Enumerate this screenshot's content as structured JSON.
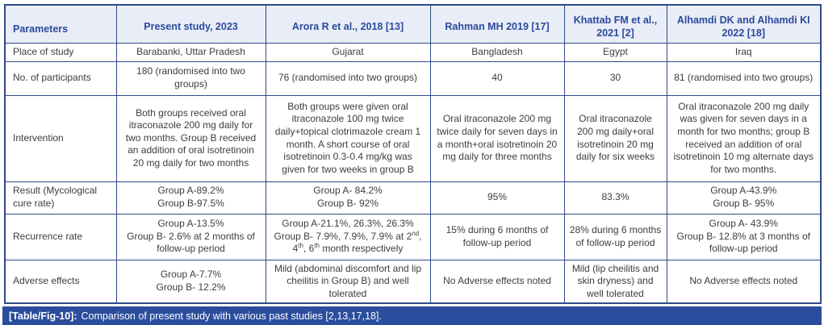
{
  "table": {
    "columns": [
      "Parameters",
      "Present study, 2023",
      "Arora R et al., 2018 [13]",
      "Rahman MH 2019 [17]",
      "Khattab FM et al., 2021 [2]",
      "Alhamdi DK and Alhamdi KI 2022 [18]"
    ],
    "rows": [
      {
        "label": "Place of study",
        "cells": [
          "Barabanki, Uttar Pradesh",
          "Gujarat",
          "Bangladesh",
          "Egypt",
          "Iraq"
        ]
      },
      {
        "label": "No. of participants",
        "cells": [
          "180 (randomised into two groups)",
          "76 (randomised into two groups)",
          "40",
          "30",
          "81 (randomised into two groups)"
        ]
      },
      {
        "label": "Intervention",
        "cells": [
          "Both groups received oral itraconazole 200 mg daily for two months. Group B received an addition of oral isotretinoin 20 mg daily for two months",
          "Both groups were given oral itraconazole 100 mg twice daily+topical clotrimazole cream 1 month. A short course of oral isotretinoin 0.3-0.4 mg/kg was given for two weeks in group B",
          "Oral itraconazole 200 mg twice daily for seven days in a month+oral isotretinoin 20 mg daily for three months",
          "Oral itraconazole 200 mg daily+oral isotretinoin 20 mg daily for six weeks",
          "Oral itraconazole 200 mg daily was given for seven days in a month for two months; group B received an addition of oral isotretinoin 10 mg alternate days for two months."
        ]
      },
      {
        "label": "Result (Mycological cure rate)",
        "cells": [
          "Group A-89.2%\nGroup B-97.5%",
          "Group A- 84.2%\nGroup B- 92%",
          "95%",
          "83.3%",
          "Group A-43.9%\nGroup B- 95%"
        ]
      },
      {
        "label": "Recurrence rate",
        "cells": [
          "Group A-13.5%\nGroup B- 2.6% at 2 months of follow-up period",
          "Group A-21.1%, 26.3%, 26.3%\nGroup B- 7.9%, 7.9%, 7.9% at 2^{nd}, 4^{th}, 6^{th} month respectively",
          "15% during 6 months of follow-up period",
          "28% during 6 months of follow-up period",
          "Group A- 43.9%\nGroup B- 12.8% at 3 months of follow-up period"
        ]
      },
      {
        "label": "Adverse effects",
        "cells": [
          "Group A-7.7%\nGroup B- 12.2%",
          "Mild (abdominal discomfort and lip cheilitis in Group B) and well tolerated",
          "No Adverse effects noted",
          "Mild (lip cheilitis and skin dryness) and well tolerated",
          "No Adverse effects noted"
        ]
      }
    ]
  },
  "caption": {
    "tag": "[Table/Fig-10]:",
    "text": "Comparison of present study with various past studies [2,13,17,18]."
  },
  "colors": {
    "border": "#2d4a86",
    "header_bg": "#e9edf7",
    "header_text": "#2b4a9b",
    "caption_bg": "#2a4d9d",
    "caption_text": "#ffffff",
    "body_text": "#3d3d3d"
  }
}
